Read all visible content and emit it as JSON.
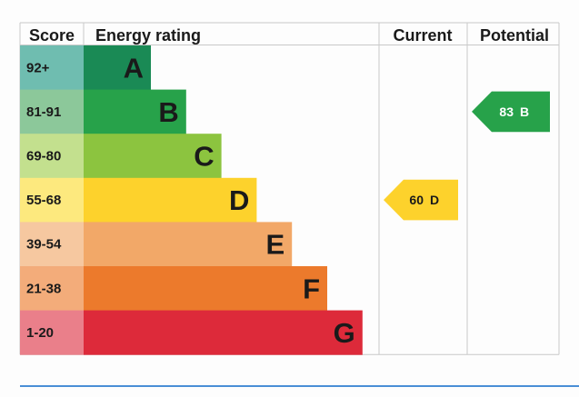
{
  "chart_data": {
    "type": "bar",
    "headers": {
      "score": "Score",
      "energy_rating": "Energy rating",
      "current": "Current",
      "potential": "Potential"
    },
    "bands": [
      {
        "score": "92+",
        "letter": "A",
        "min": 92,
        "max": 100,
        "color": "#1a8a55",
        "score_bg": "#6fbdb0"
      },
      {
        "score": "81-91",
        "letter": "B",
        "min": 81,
        "max": 91,
        "color": "#27a24a",
        "score_bg": "#8cc89a"
      },
      {
        "score": "69-80",
        "letter": "C",
        "min": 69,
        "max": 80,
        "color": "#8cc43f",
        "score_bg": "#c3e08e"
      },
      {
        "score": "55-68",
        "letter": "D",
        "min": 55,
        "max": 68,
        "color": "#fdd22c",
        "score_bg": "#fde97e"
      },
      {
        "score": "39-54",
        "letter": "E",
        "min": 39,
        "max": 54,
        "color": "#f2a868",
        "score_bg": "#f6c8a0"
      },
      {
        "score": "21-38",
        "letter": "F",
        "min": 21,
        "max": 38,
        "color": "#ec7a2c",
        "score_bg": "#f3ac7a"
      },
      {
        "score": "1-20",
        "letter": "G",
        "min": 1,
        "max": 20,
        "color": "#dd2a3a",
        "score_bg": "#ea7f8a"
      }
    ],
    "current": {
      "value": 60,
      "letter": "D",
      "label_value": "60",
      "label_letter": "D",
      "color": "#fdd22c",
      "text_color": "#1a1a1a"
    },
    "potential": {
      "value": 83,
      "letter": "B",
      "label_value": "83",
      "label_letter": "B",
      "color": "#27a24a",
      "text_color": "#ffffff"
    }
  }
}
